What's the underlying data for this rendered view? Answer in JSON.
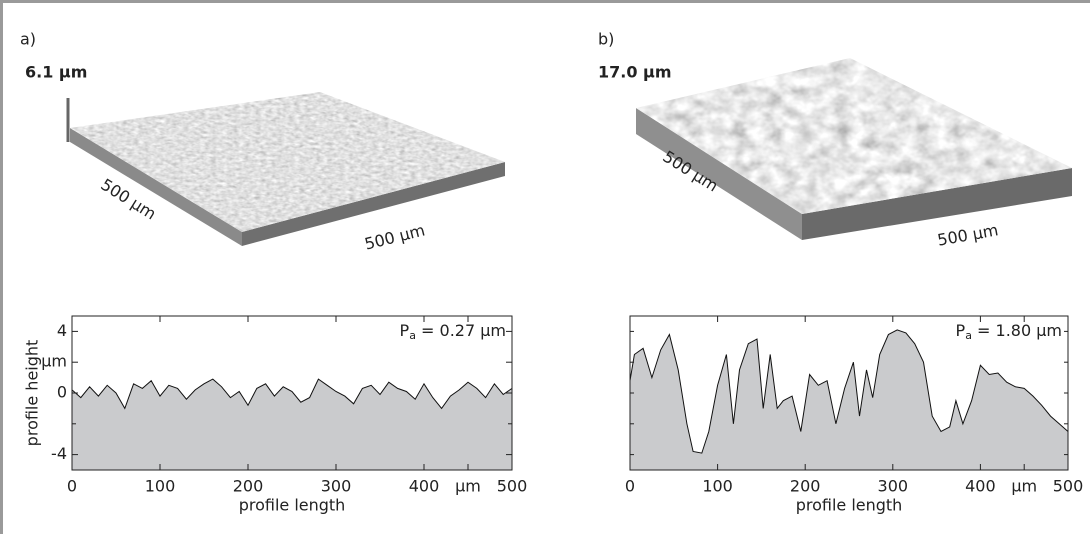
{
  "chart_data": [
    {
      "type": "area",
      "panel_label": "a)",
      "surface": {
        "height_label": "6.1 µm",
        "side_labels": [
          "500 µm",
          "500 µm"
        ]
      },
      "annotation": {
        "symbol": "P",
        "subscript": "a",
        "text": " = 0.27 µm"
      },
      "x_label": "profile length",
      "y_label": "profile height",
      "x": [
        0,
        10,
        20,
        30,
        40,
        50,
        60,
        70,
        80,
        90,
        100,
        110,
        120,
        130,
        140,
        150,
        160,
        170,
        180,
        190,
        200,
        210,
        220,
        230,
        240,
        250,
        260,
        270,
        280,
        290,
        300,
        310,
        320,
        330,
        340,
        350,
        360,
        370,
        380,
        390,
        400,
        410,
        420,
        430,
        440,
        450,
        460,
        470,
        480,
        490,
        500
      ],
      "values": [
        0.2,
        -0.3,
        0.4,
        -0.2,
        0.5,
        0.0,
        -1.0,
        0.6,
        0.3,
        0.8,
        -0.2,
        0.5,
        0.3,
        -0.4,
        0.2,
        0.6,
        0.9,
        0.4,
        -0.3,
        0.1,
        -0.8,
        0.3,
        0.6,
        -0.2,
        0.4,
        0.1,
        -0.6,
        -0.3,
        0.9,
        0.5,
        0.1,
        -0.2,
        -0.7,
        0.3,
        0.5,
        -0.1,
        0.7,
        0.3,
        0.1,
        -0.4,
        0.6,
        -0.3,
        -1.0,
        -0.2,
        0.2,
        0.7,
        0.3,
        -0.3,
        0.6,
        -0.1,
        0.3
      ],
      "color": "#cacbcd",
      "xlim": [
        0,
        500
      ],
      "ylim": [
        -5,
        5
      ],
      "xticks": [
        0,
        100,
        200,
        300,
        400,
        {
          "value": 450,
          "label": "µm"
        },
        500
      ],
      "yticks": [
        -4,
        0,
        {
          "value": 2,
          "label": "µm"
        },
        4
      ],
      "y_minor_ticks": [
        -2
      ]
    },
    {
      "type": "area",
      "panel_label": "b)",
      "surface": {
        "height_label": "17.0 µm",
        "side_labels": [
          "500 µm",
          "500 µm"
        ]
      },
      "annotation": {
        "symbol": "P",
        "subscript": "a",
        "text": " = 1.80 µm"
      },
      "x_label": "profile length",
      "x": [
        0,
        5,
        15,
        25,
        35,
        45,
        55,
        65,
        72,
        82,
        90,
        100,
        110,
        118,
        125,
        135,
        145,
        152,
        160,
        168,
        175,
        185,
        195,
        205,
        215,
        225,
        235,
        245,
        255,
        262,
        270,
        277,
        285,
        295,
        305,
        315,
        325,
        335,
        345,
        355,
        365,
        372,
        380,
        390,
        400,
        410,
        420,
        430,
        440,
        450,
        460,
        470,
        480,
        490,
        500
      ],
      "values": [
        0.8,
        2.5,
        2.9,
        1.0,
        2.8,
        3.8,
        1.5,
        -2.0,
        -3.8,
        -3.9,
        -2.5,
        0.5,
        2.5,
        -2.0,
        1.5,
        3.2,
        3.5,
        -1.0,
        2.5,
        -1.0,
        -0.5,
        -0.2,
        -2.5,
        1.2,
        0.5,
        0.8,
        -2.0,
        0.3,
        2.0,
        -1.5,
        1.5,
        -0.3,
        2.5,
        3.8,
        4.1,
        3.9,
        3.2,
        2.0,
        -1.5,
        -2.5,
        -2.2,
        -0.5,
        -2.0,
        -0.5,
        1.8,
        1.2,
        1.3,
        0.7,
        0.4,
        0.3,
        -0.2,
        -0.8,
        -1.5,
        -2.0,
        -2.5
      ],
      "color": "#cacbcd",
      "xlim": [
        0,
        500
      ],
      "ylim": [
        -5,
        5
      ],
      "xticks": [
        0,
        100,
        200,
        300,
        400,
        {
          "value": 450,
          "label": "µm"
        },
        500
      ],
      "y_minor_ticks": [
        -4,
        -2,
        0,
        2,
        4
      ]
    }
  ]
}
